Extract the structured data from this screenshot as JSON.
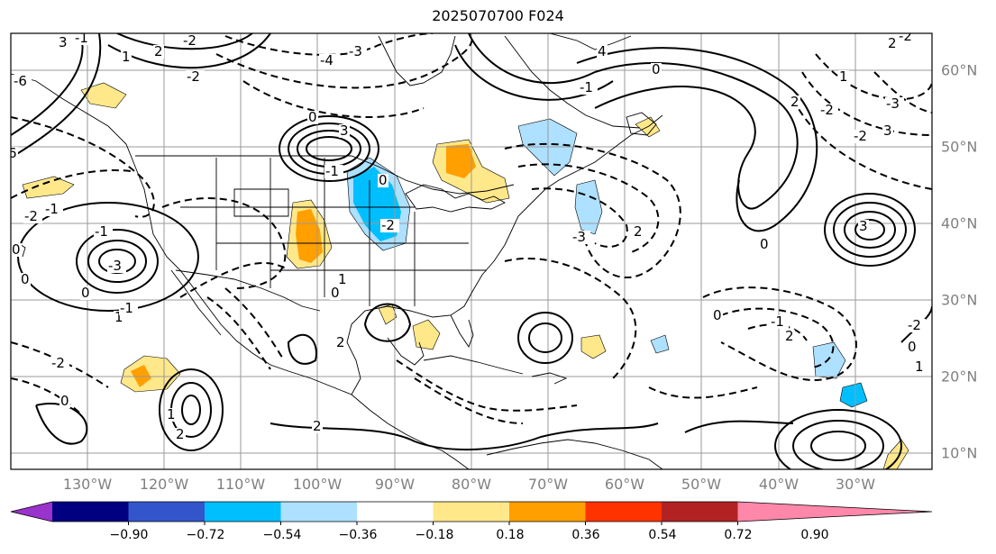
{
  "title": "2025070700 F024",
  "map": {
    "lon_labels": [
      "130°W",
      "120°W",
      "110°W",
      "100°W",
      "90°W",
      "80°W",
      "70°W",
      "60°W",
      "50°W",
      "40°W",
      "30°W"
    ],
    "lat_labels": [
      "60°N",
      "50°N",
      "40°N",
      "30°N",
      "20°N",
      "10°N"
    ],
    "gridline_color": "#9a9a9a",
    "coastline_color": "#000000",
    "contour_color": "#000000",
    "contour_labels": [
      "-1",
      "1",
      "2",
      "-2",
      "-4",
      "-3",
      "3",
      "-6",
      "6",
      "4",
      "0",
      "-1",
      "2",
      "-2",
      "3",
      "-3",
      "-2",
      "1",
      "3",
      "2",
      "-2",
      "-3",
      "2",
      "0",
      "-1",
      "2",
      "0",
      "-2",
      "0",
      "1",
      "-2",
      "3",
      "-1",
      "0",
      "0",
      "-2",
      "1",
      "0",
      "2",
      "2",
      "-3",
      "-1",
      "-1",
      "-2",
      "0",
      "0",
      "0",
      "1",
      "-1",
      "-2",
      "0",
      "1",
      "2"
    ]
  },
  "colorbar": {
    "colors": [
      "#9933cc",
      "#000080",
      "#3355cc",
      "#00bfff",
      "#aee0ff",
      "#ffffff",
      "#ffe88a",
      "#ff9f00",
      "#ff3300",
      "#b22222",
      "#ff88aa"
    ],
    "tick_labels": [
      "−0.90",
      "−0.72",
      "−0.54",
      "−0.36",
      "−0.18",
      "0.18",
      "0.36",
      "0.54",
      "0.72",
      "0.90"
    ]
  }
}
